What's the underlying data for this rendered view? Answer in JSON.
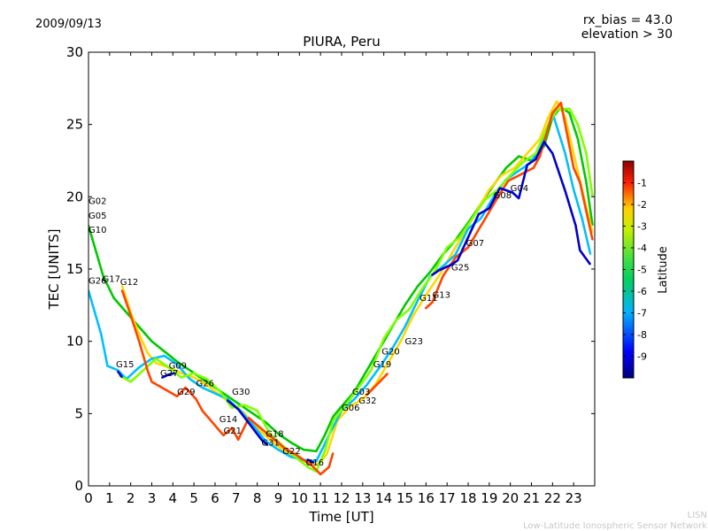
{
  "header": {
    "date": "2009/09/13",
    "rx_bias": "rx_bias = 43.0",
    "elevation": "elevation > 30"
  },
  "footer": {
    "lisn": "LISN",
    "network": "Low-Latitude Ionospheric Sensor Network"
  },
  "colorbar": {
    "label": "Latitude",
    "ticks": [
      "-1",
      "-2",
      "-3",
      "-4",
      "-5",
      "-6",
      "-7",
      "-8",
      "-9"
    ],
    "tick_values": [
      -1,
      -2,
      -3,
      -4,
      -5,
      -6,
      -7,
      -8,
      -9
    ],
    "range": [
      -10,
      0
    ],
    "colors": [
      "#00007f",
      "#0000ff",
      "#007fff",
      "#00ffff",
      "#7fff7f",
      "#ffff00",
      "#ff7f00",
      "#ff0000",
      "#7f0000"
    ]
  },
  "chart_data": {
    "type": "scatter",
    "title": "PIURA, Peru",
    "xlabel": "Time [UT]",
    "ylabel": "TEC [UNITS]",
    "xlim": [
      0,
      24
    ],
    "ylim": [
      0,
      30
    ],
    "x_ticks": [
      0,
      1,
      2,
      3,
      4,
      5,
      6,
      7,
      8,
      9,
      10,
      11,
      12,
      13,
      14,
      15,
      16,
      17,
      18,
      19,
      20,
      21,
      22,
      23
    ],
    "x_tick_labels": [
      "0",
      "1",
      "2",
      "3",
      "4",
      "5",
      "6",
      "7",
      "8",
      "9",
      "10",
      "11",
      "12",
      "13",
      "14",
      "15",
      "16",
      "17",
      "18",
      "19",
      "20",
      "21",
      "22",
      "23"
    ],
    "y_ticks": [
      0,
      5,
      10,
      15,
      20,
      25,
      30
    ],
    "y_tick_labels": [
      "0",
      "5",
      "10",
      "15",
      "20",
      "25",
      "30"
    ],
    "series": [
      {
        "name": "s1",
        "color": "#00c800",
        "points": [
          [
            0,
            18
          ],
          [
            0.3,
            16.5
          ],
          [
            0.7,
            14.5
          ],
          [
            1.2,
            13
          ],
          [
            1.8,
            12
          ],
          [
            2.4,
            11
          ],
          [
            3,
            10
          ],
          [
            3.6,
            9.3
          ],
          [
            4.2,
            8.6
          ],
          [
            4.8,
            8
          ],
          [
            5.4,
            7.4
          ],
          [
            6,
            6.8
          ],
          [
            6.6,
            6.2
          ],
          [
            7.2,
            5.6
          ],
          [
            7.8,
            5
          ],
          [
            8.4,
            4.4
          ],
          [
            9,
            3.6
          ],
          [
            9.6,
            3
          ],
          [
            10.2,
            2.5
          ],
          [
            10.8,
            2.4
          ],
          [
            11.2,
            3.5
          ],
          [
            11.6,
            4.8
          ],
          [
            12,
            5.5
          ],
          [
            12.6,
            6.5
          ],
          [
            13.2,
            8
          ],
          [
            13.8,
            9.5
          ],
          [
            14.4,
            11
          ],
          [
            15,
            12.5
          ],
          [
            15.6,
            13.8
          ],
          [
            16.2,
            14.8
          ],
          [
            16.8,
            16
          ],
          [
            17.4,
            17
          ],
          [
            18,
            18.2
          ],
          [
            18.6,
            19.5
          ],
          [
            19.2,
            20.8
          ],
          [
            19.8,
            22
          ],
          [
            20.4,
            22.8
          ],
          [
            21,
            22.5
          ],
          [
            21.6,
            23.5
          ],
          [
            22,
            25.5
          ],
          [
            22.4,
            26.2
          ],
          [
            22.8,
            25.8
          ],
          [
            23.2,
            24
          ],
          [
            23.6,
            21
          ],
          [
            23.9,
            18
          ]
        ]
      },
      {
        "name": "s2",
        "color": "#ffd700",
        "points": [
          [
            1.6,
            13.8
          ],
          [
            2,
            12
          ],
          [
            2.4,
            10.5
          ],
          [
            2.8,
            9.2
          ],
          [
            3.2,
            8.5
          ],
          [
            3.8,
            8.2
          ],
          [
            4.4,
            7.8
          ],
          [
            5,
            7.5
          ],
          [
            5.6,
            7
          ],
          [
            6.2,
            6.3
          ],
          [
            6.8,
            5.7
          ],
          [
            7.4,
            5
          ],
          [
            8,
            4
          ],
          [
            8.6,
            3.2
          ],
          [
            9.2,
            2.5
          ],
          [
            9.8,
            2
          ],
          [
            10.4,
            1.6
          ],
          [
            10.9,
            1.5
          ],
          [
            11.3,
            2.2
          ],
          [
            11.8,
            4.5
          ],
          [
            12.4,
            5.5
          ],
          [
            13,
            6
          ],
          [
            13.6,
            7
          ],
          [
            14.2,
            8.5
          ],
          [
            14.8,
            10
          ],
          [
            15.4,
            11.8
          ],
          [
            16,
            13.2
          ],
          [
            16.6,
            14.5
          ],
          [
            17.2,
            16
          ],
          [
            17.8,
            17.5
          ],
          [
            18.4,
            19
          ],
          [
            19,
            20.5
          ],
          [
            19.6,
            21.5
          ],
          [
            20.2,
            22
          ],
          [
            20.8,
            23
          ],
          [
            21.4,
            24
          ],
          [
            21.8,
            25.5
          ],
          [
            22.2,
            26.6
          ],
          [
            22.6,
            25.5
          ],
          [
            23,
            23
          ],
          [
            23.4,
            20.5
          ],
          [
            23.9,
            17.5
          ]
        ]
      },
      {
        "name": "s3",
        "color": "#00bfff",
        "points": [
          [
            0,
            13.5
          ],
          [
            0.3,
            12
          ],
          [
            0.6,
            10.5
          ],
          [
            0.9,
            8.3
          ],
          [
            1.4,
            8
          ],
          [
            1.8,
            7.4
          ],
          [
            2.4,
            8.2
          ],
          [
            3,
            8.8
          ],
          [
            3.6,
            9
          ],
          [
            4.2,
            8.4
          ],
          [
            4.8,
            7.4
          ],
          [
            5.4,
            6.8
          ],
          [
            6,
            6.4
          ],
          [
            6.6,
            6
          ],
          [
            7.2,
            5.2
          ],
          [
            7.8,
            4.2
          ],
          [
            8.4,
            3.1
          ],
          [
            9,
            2.5
          ],
          [
            9.6,
            2
          ],
          [
            10.2,
            1.8
          ],
          [
            10.8,
            1.7
          ],
          [
            11.4,
            3.5
          ],
          [
            12,
            5.2
          ],
          [
            12.6,
            6
          ],
          [
            13.2,
            7
          ],
          [
            13.8,
            8.2
          ],
          [
            14.4,
            9.5
          ],
          [
            15,
            11
          ],
          [
            15.6,
            12.8
          ],
          [
            16.2,
            14.5
          ],
          [
            16.8,
            15.2
          ],
          [
            17.4,
            16
          ],
          [
            18,
            17.8
          ],
          [
            18.6,
            18.5
          ],
          [
            19.2,
            20
          ],
          [
            19.8,
            21.2
          ],
          [
            20.4,
            21.8
          ],
          [
            21,
            22.4
          ],
          [
            21.6,
            24
          ],
          [
            22,
            25.8
          ],
          [
            22.6,
            23
          ],
          [
            23,
            20.5
          ],
          [
            23.4,
            18.5
          ],
          [
            23.8,
            16
          ]
        ]
      },
      {
        "name": "s4",
        "color": "#7fff00",
        "points": [
          [
            1.5,
            7.6
          ],
          [
            2,
            7.2
          ],
          [
            2.6,
            8
          ],
          [
            3.2,
            8.8
          ],
          [
            3.8,
            8.2
          ],
          [
            4.4,
            7.5
          ],
          [
            5,
            7.8
          ],
          [
            5.6,
            7.4
          ],
          [
            6.2,
            6.6
          ],
          [
            6.8,
            5.4
          ],
          [
            7.4,
            5.6
          ],
          [
            8,
            5.2
          ],
          [
            8.6,
            3.6
          ],
          [
            9.2,
            2.8
          ],
          [
            9.8,
            2
          ],
          [
            10.4,
            1.3
          ],
          [
            10.8,
            1
          ],
          [
            11.2,
            2.4
          ],
          [
            11.6,
            4.5
          ],
          [
            12.2,
            5.6
          ],
          [
            12.8,
            6.8
          ],
          [
            13.4,
            8
          ],
          [
            14,
            10.2
          ],
          [
            14.6,
            11.5
          ],
          [
            15.2,
            12.2
          ],
          [
            15.8,
            13.6
          ],
          [
            16.4,
            14.8
          ],
          [
            17,
            16.5
          ],
          [
            17.6,
            17.2
          ],
          [
            18.2,
            18.5
          ],
          [
            18.8,
            19.8
          ],
          [
            19.4,
            20.5
          ],
          [
            20,
            21.5
          ],
          [
            20.6,
            22.4
          ],
          [
            21.2,
            23
          ],
          [
            21.8,
            25
          ],
          [
            22.2,
            26
          ],
          [
            22.8,
            26.1
          ],
          [
            23.2,
            25
          ],
          [
            23.6,
            23
          ],
          [
            23.9,
            20
          ]
        ]
      },
      {
        "name": "s5",
        "color": "#ff4500",
        "points": [
          [
            1.6,
            13.5
          ],
          [
            2,
            11.8
          ],
          [
            2.4,
            10
          ],
          [
            2.8,
            8
          ],
          [
            3,
            7.2
          ],
          [
            4.2,
            6.2
          ],
          [
            4.6,
            6.8
          ],
          [
            5.1,
            6
          ],
          [
            5.4,
            5.2
          ],
          [
            6.4,
            3.5
          ],
          [
            6.8,
            4
          ],
          [
            7.1,
            3.2
          ],
          [
            7.6,
            4.7
          ],
          [
            8,
            4.2
          ],
          [
            9.3,
            2.6
          ],
          [
            9.8,
            2.2
          ],
          [
            10.6,
            1.4
          ],
          [
            11,
            0.8
          ],
          [
            11.4,
            1.3
          ],
          [
            11.6,
            2.3
          ],
          [
            13.2,
            6.3
          ],
          [
            13.8,
            7.2
          ],
          [
            14.2,
            7.8
          ],
          [
            16,
            12.3
          ],
          [
            16.3,
            12.7
          ],
          [
            16.8,
            14.5
          ],
          [
            17.4,
            15.8
          ],
          [
            18,
            16.5
          ],
          [
            19.5,
            20.2
          ],
          [
            19.9,
            21.1
          ],
          [
            21.1,
            22
          ],
          [
            21.4,
            22.8
          ],
          [
            22,
            25.8
          ],
          [
            22.4,
            26.5
          ],
          [
            23,
            22
          ],
          [
            23.3,
            21
          ],
          [
            23.9,
            17
          ]
        ]
      },
      {
        "name": "s6",
        "color": "#0000cd",
        "points": [
          [
            1.4,
            7.9
          ],
          [
            1.6,
            7.5
          ],
          [
            3.5,
            7.5
          ],
          [
            3.8,
            7.7
          ],
          [
            4.1,
            7.8
          ],
          [
            6.6,
            5.9
          ],
          [
            7.1,
            5.3
          ],
          [
            8.2,
            3.2
          ],
          [
            8.5,
            2.8
          ],
          [
            10.4,
            1.8
          ],
          [
            10.7,
            1.6
          ],
          [
            16.3,
            14.6
          ],
          [
            16.6,
            14.9
          ],
          [
            17.2,
            15.3
          ],
          [
            17.5,
            15.6
          ],
          [
            18.5,
            18.8
          ],
          [
            19,
            19.2
          ],
          [
            19.5,
            20.6
          ],
          [
            20.1,
            20.3
          ],
          [
            20.4,
            19.9
          ],
          [
            20.8,
            22.2
          ],
          [
            21.2,
            22.6
          ],
          [
            21.6,
            23.8
          ],
          [
            22,
            23
          ],
          [
            22.6,
            20.4
          ],
          [
            23.1,
            18
          ],
          [
            23.3,
            16.3
          ],
          [
            23.8,
            15.3
          ]
        ]
      }
    ],
    "annotations": [
      {
        "text": "G02",
        "x": 0,
        "y": 19.5
      },
      {
        "text": "G05",
        "x": 0,
        "y": 18.5
      },
      {
        "text": "G10",
        "x": 0,
        "y": 17.5
      },
      {
        "text": "G26",
        "x": 0,
        "y": 14
      },
      {
        "text": "G17",
        "x": 0.65,
        "y": 14.1
      },
      {
        "text": "G12",
        "x": 1.5,
        "y": 13.9
      },
      {
        "text": "G15",
        "x": 1.3,
        "y": 8.2
      },
      {
        "text": "G09",
        "x": 3.8,
        "y": 8.1
      },
      {
        "text": "G27",
        "x": 3.4,
        "y": 7.6
      },
      {
        "text": "G29",
        "x": 4.2,
        "y": 6.3
      },
      {
        "text": "G26",
        "x": 5.1,
        "y": 6.9
      },
      {
        "text": "G30",
        "x": 6.8,
        "y": 6.3
      },
      {
        "text": "G14",
        "x": 6.2,
        "y": 4.4
      },
      {
        "text": "G21",
        "x": 6.4,
        "y": 3.6
      },
      {
        "text": "G18",
        "x": 8.4,
        "y": 3.4
      },
      {
        "text": "G31",
        "x": 8.2,
        "y": 2.8
      },
      {
        "text": "G22",
        "x": 9.2,
        "y": 2.2
      },
      {
        "text": "G16",
        "x": 10.3,
        "y": 1.4
      },
      {
        "text": "G06",
        "x": 12,
        "y": 5.2
      },
      {
        "text": "G03",
        "x": 12.5,
        "y": 6.3
      },
      {
        "text": "G32",
        "x": 12.8,
        "y": 5.7
      },
      {
        "text": "G19",
        "x": 13.5,
        "y": 8.2
      },
      {
        "text": "G20",
        "x": 13.9,
        "y": 9.1
      },
      {
        "text": "G23",
        "x": 15,
        "y": 9.8
      },
      {
        "text": "G11",
        "x": 15.7,
        "y": 12.8
      },
      {
        "text": "G13",
        "x": 16.3,
        "y": 13
      },
      {
        "text": "G25",
        "x": 17.2,
        "y": 14.9
      },
      {
        "text": "G07",
        "x": 17.9,
        "y": 16.6
      },
      {
        "text": "G08",
        "x": 19.2,
        "y": 19.9
      },
      {
        "text": "G04",
        "x": 20,
        "y": 20.4
      }
    ]
  }
}
